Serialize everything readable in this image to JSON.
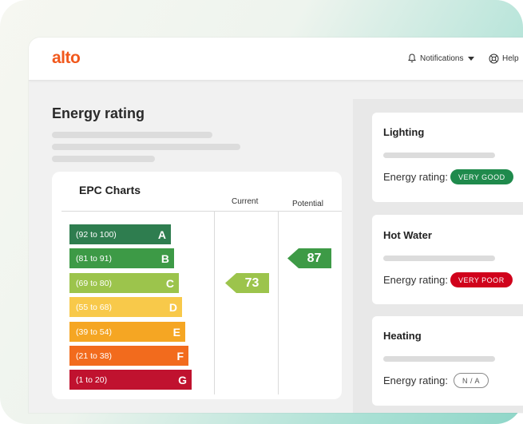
{
  "header": {
    "logo": "alto",
    "notifications_label": "Notifications",
    "help_label": "Help"
  },
  "page": {
    "title": "Energy rating"
  },
  "epc": {
    "title": "EPC Charts",
    "current_header": "Current",
    "potential_header": "Potential",
    "bands": [
      {
        "range": "(92 to 100)",
        "letter": "A",
        "color": "#2e7d4f"
      },
      {
        "range": "(81 to 91)",
        "letter": "B",
        "color": "#3d9a46"
      },
      {
        "range": "(69 to 80)",
        "letter": "C",
        "color": "#9cc44c"
      },
      {
        "range": "(55 to 68)",
        "letter": "D",
        "color": "#f8c94a"
      },
      {
        "range": "(39 to 54)",
        "letter": "E",
        "color": "#f5a623"
      },
      {
        "range": "(21 to 38)",
        "letter": "F",
        "color": "#f26b1d"
      },
      {
        "range": "(1 to 20)",
        "letter": "G",
        "color": "#c0122f"
      }
    ],
    "current": {
      "value": "73",
      "band": "C",
      "color": "#9cc44c"
    },
    "potential": {
      "value": "87",
      "band": "B",
      "color": "#3d9a46"
    }
  },
  "ratings": [
    {
      "title": "Lighting",
      "label": "Energy rating:",
      "badge": "VERY GOOD",
      "badge_color": "#1f8a4c"
    },
    {
      "title": "Hot Water",
      "label": "Energy rating:",
      "badge": "VERY POOR",
      "badge_color": "#d0021b"
    },
    {
      "title": "Heating",
      "label": "Energy rating:",
      "badge": "N / A",
      "badge_color": "#ffffff"
    }
  ],
  "colors": {
    "brand": "#f1581c"
  }
}
